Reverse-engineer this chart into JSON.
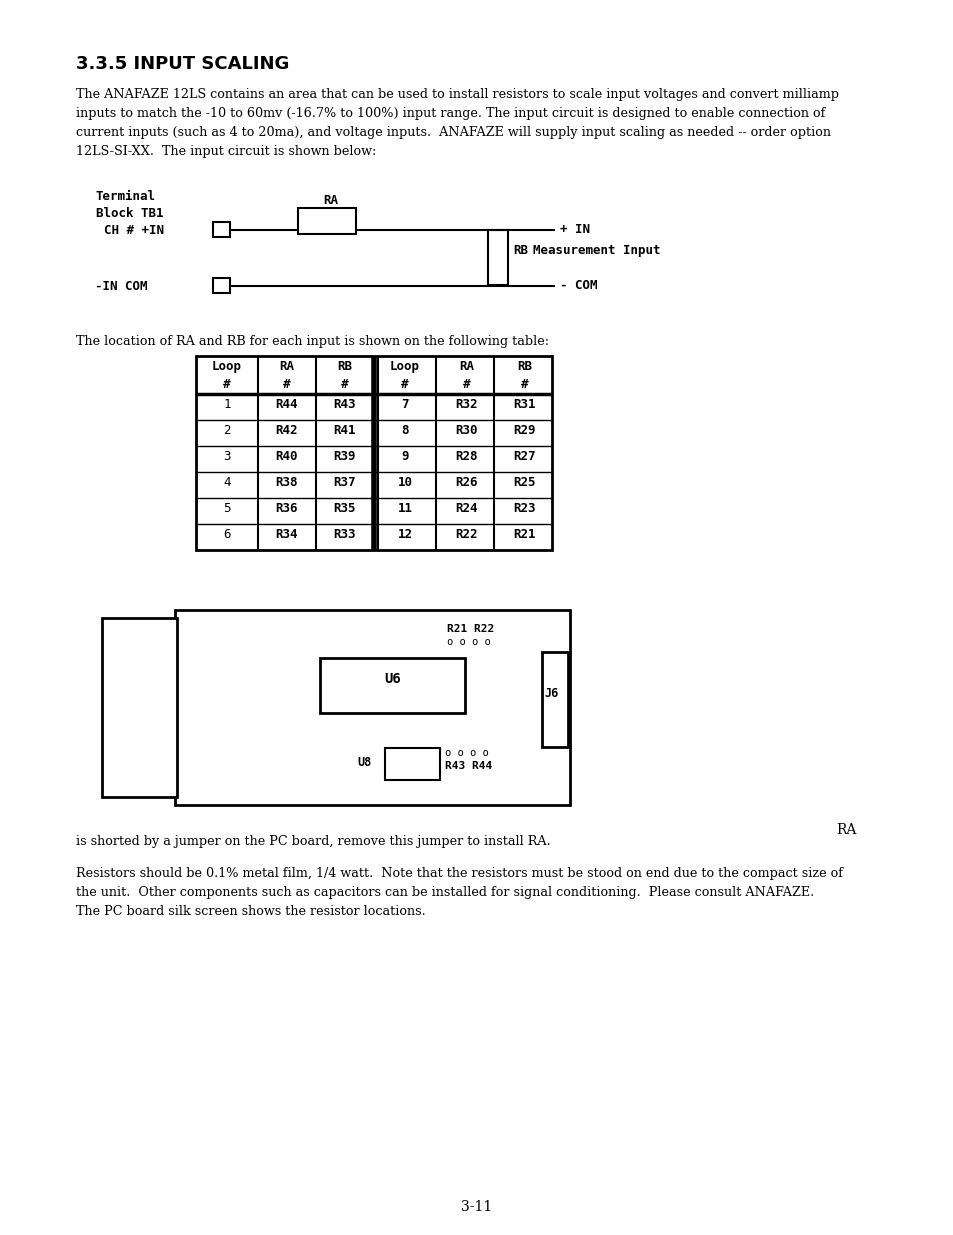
{
  "title": "3.3.5 INPUT SCALING",
  "body_text_1": "The ANAFAZE 12LS contains an area that can be used to install resistors to scale input voltages and convert milliamp\ninputs to match the -10 to 60mv (-16.7% to 100%) input range. The input circuit is designed to enable connection of\ncurrent inputs (such as 4 to 20ma), and voltage inputs.  ANAFAZE will supply input scaling as needed -- order option\n12LS-SI-XX.  The input circuit is shown below:",
  "circuit_label_terminal": "Terminal\nBlock TB1",
  "circuit_label_ra_top": "RA",
  "circuit_label_ch": "CH # +IN",
  "circuit_label_plus_in": "+ IN",
  "circuit_label_rb": "RB",
  "circuit_label_meas": "Measurement Input",
  "circuit_label_neg_in": "-IN COM",
  "circuit_label_neg_com": "- COM",
  "table_intro": "The location of RA and RB for each input is shown on the following table:",
  "table_headers": [
    "Loop\n#",
    "RA\n#",
    "RB\n#",
    "Loop\n#",
    "RA\n#",
    "RB\n#"
  ],
  "table_rows": [
    [
      "1",
      "R44",
      "R43",
      "7",
      "R32",
      "R31"
    ],
    [
      "2",
      "R42",
      "R41",
      "8",
      "R30",
      "R29"
    ],
    [
      "3",
      "R40",
      "R39",
      "9",
      "R28",
      "R27"
    ],
    [
      "4",
      "R38",
      "R37",
      "10",
      "R26",
      "R25"
    ],
    [
      "5",
      "R36",
      "R35",
      "11",
      "R24",
      "R23"
    ],
    [
      "6",
      "R34",
      "R33",
      "12",
      "R22",
      "R21"
    ]
  ],
  "board_label_r21_r22": "R21 R22",
  "board_label_dots_top": "o o o o",
  "board_label_u6": "U6",
  "board_label_j6": "J6",
  "board_label_u8": "U8",
  "board_label_dots_bot": "o o o o",
  "board_label_r43_r44": "R43 R44",
  "ra_label": "RA",
  "footer_text_1": "is shorted by a jumper on the PC board, remove this jumper to install RA.",
  "footer_text_2": "Resistors should be 0.1% metal film, 1/4 watt.  Note that the resistors must be stood on end due to the compact size of\nthe unit.  Other components such as capacitors can be installed for signal conditioning.  Please consult ANAFAZE.\nThe PC board silk screen shows the resistor locations.",
  "page_number": "3-11",
  "bg_color": "#ffffff"
}
